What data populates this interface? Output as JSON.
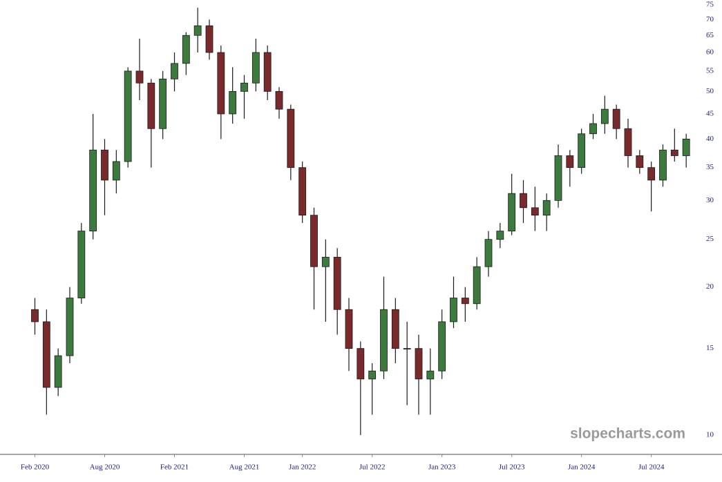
{
  "chart_data": {
    "type": "candlestick",
    "watermark": "slopecharts.com",
    "x": [
      "2020-02",
      "2020-03",
      "2020-04",
      "2020-05",
      "2020-06",
      "2020-07",
      "2020-08",
      "2020-09",
      "2020-10",
      "2020-11",
      "2020-12",
      "2021-01",
      "2021-02",
      "2021-03",
      "2021-04",
      "2021-05",
      "2021-06",
      "2021-07",
      "2021-08",
      "2021-09",
      "2021-10",
      "2021-11",
      "2021-12",
      "2022-01",
      "2022-02",
      "2022-03",
      "2022-04",
      "2022-05",
      "2022-06",
      "2022-07",
      "2022-08",
      "2022-09",
      "2022-10",
      "2022-11",
      "2022-12",
      "2023-01",
      "2023-02",
      "2023-03",
      "2023-04",
      "2023-05",
      "2023-06",
      "2023-07",
      "2023-08",
      "2023-09",
      "2023-10",
      "2023-11",
      "2023-12",
      "2024-01",
      "2024-02",
      "2024-03",
      "2024-04",
      "2024-05",
      "2024-06",
      "2024-07",
      "2024-08",
      "2024-09",
      "2024-10"
    ],
    "open": [
      18,
      17,
      12.5,
      14.5,
      19,
      26,
      38,
      33,
      36,
      55,
      52,
      42,
      53,
      57,
      65,
      68,
      60,
      45,
      50,
      52,
      60,
      50,
      46,
      35,
      28,
      22,
      23,
      18,
      15,
      13,
      13.5,
      18,
      15,
      15,
      13,
      13.5,
      17,
      19,
      18.5,
      22,
      25,
      26,
      31,
      29,
      28,
      30,
      37,
      35,
      41,
      43,
      46,
      42,
      37,
      35,
      33,
      38,
      37
    ],
    "high": [
      19,
      18,
      15,
      20,
      27,
      45,
      40,
      38,
      56,
      64,
      53,
      55,
      60,
      66,
      74,
      70,
      62,
      56,
      54,
      64,
      62,
      51,
      47,
      36,
      29,
      25,
      24,
      19,
      15.5,
      14,
      21,
      19,
      17,
      16,
      15,
      18,
      21,
      20,
      23,
      26,
      27,
      34,
      33,
      32,
      31,
      39,
      38,
      42,
      45,
      49,
      47,
      44,
      38,
      36,
      39,
      42,
      41
    ],
    "low": [
      16,
      11,
      12,
      14,
      18.5,
      25,
      28,
      31,
      35,
      48,
      35,
      40,
      50,
      54,
      60,
      58,
      40,
      43,
      44,
      50,
      48,
      44,
      33,
      27,
      18,
      17,
      16,
      13.5,
      10,
      11,
      13,
      14,
      11.5,
      11,
      11,
      13,
      16.5,
      17,
      18,
      21,
      24,
      25.5,
      27,
      26,
      26,
      29,
      32,
      34,
      40,
      41,
      40,
      35,
      34,
      28.5,
      32,
      36,
      35
    ],
    "close": [
      17,
      12.5,
      14.5,
      19,
      26,
      38,
      33,
      36,
      55,
      52,
      42,
      53,
      57,
      65,
      68,
      60,
      45,
      50,
      52,
      60,
      50,
      46,
      35,
      28,
      22,
      23,
      18,
      15,
      13,
      13.5,
      18,
      15,
      15,
      13,
      13.5,
      17,
      19,
      18.5,
      22,
      25,
      26,
      31,
      29,
      28,
      30,
      37,
      35,
      41,
      43,
      46,
      42,
      37,
      35,
      33,
      38,
      37,
      40
    ],
    "up_color": "#3d7a3d",
    "down_color": "#7a2a2a",
    "wick_color": "#1a1a1a",
    "xlim": [
      "2019-11",
      "2024-11"
    ],
    "xticks": [
      {
        "value": "2020-02",
        "label": "Feb 2020"
      },
      {
        "value": "2020-08",
        "label": "Aug 2020"
      },
      {
        "value": "2021-02",
        "label": "Feb 2021"
      },
      {
        "value": "2021-08",
        "label": "Aug 2021"
      },
      {
        "value": "2022-01",
        "label": "Jan 2022"
      },
      {
        "value": "2022-07",
        "label": "Jul 2022"
      },
      {
        "value": "2023-01",
        "label": "Jan 2023"
      },
      {
        "value": "2023-07",
        "label": "Jul 2023"
      },
      {
        "value": "2024-01",
        "label": "Jan 2024"
      },
      {
        "value": "2024-07",
        "label": "Jul 2024"
      }
    ],
    "ylim": [
      10,
      75
    ],
    "yticks": [
      10,
      15,
      20,
      25,
      30,
      35,
      40,
      45,
      50,
      55,
      60,
      65,
      70,
      75
    ],
    "log_scale": true
  }
}
